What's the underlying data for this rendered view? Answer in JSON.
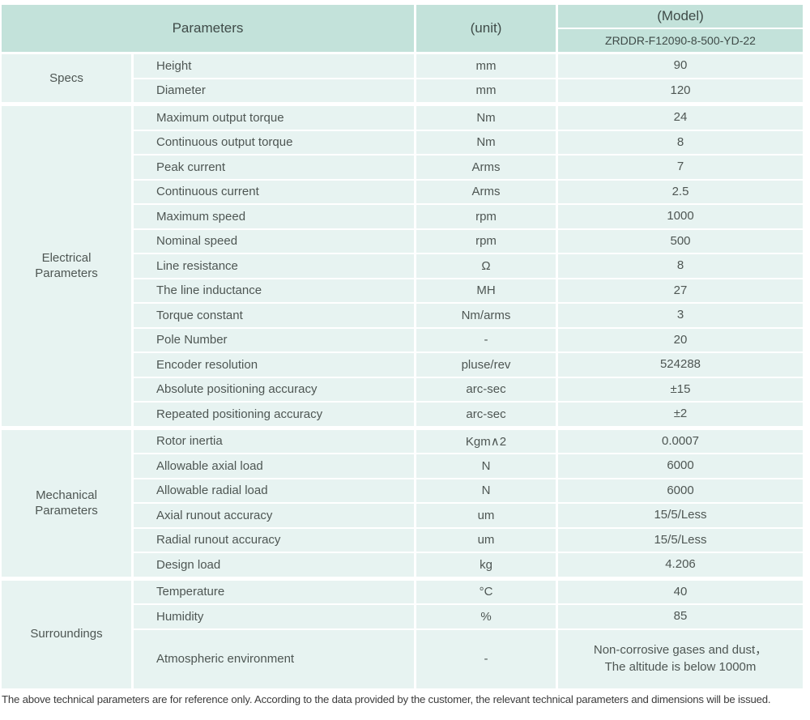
{
  "colors": {
    "header_bg": "#c3e2da",
    "cell_bg": "#e7f3f1",
    "text": "#4e5653"
  },
  "table": {
    "header": {
      "parameters": "Parameters",
      "unit": "(unit)",
      "model": "(Model)",
      "model_value": "ZRDDR-F12090-8-500-YD-22"
    },
    "sections": [
      {
        "group": "Specs",
        "rows": [
          {
            "param": "Height",
            "unit": "mm",
            "value": "90"
          },
          {
            "param": "Diameter",
            "unit": "mm",
            "value": "120"
          }
        ]
      },
      {
        "group": "Electrical Parameters",
        "rows": [
          {
            "param": "Maximum output torque",
            "unit": "Nm",
            "value": "24"
          },
          {
            "param": "Continuous output torque",
            "unit": "Nm",
            "value": "8"
          },
          {
            "param": "Peak current",
            "unit": "Arms",
            "value": "7"
          },
          {
            "param": "Continuous current",
            "unit": "Arms",
            "value": "2.5"
          },
          {
            "param": "Maximum speed",
            "unit": "rpm",
            "value": "1000"
          },
          {
            "param": "Nominal speed",
            "unit": "rpm",
            "value": "500"
          },
          {
            "param": "Line resistance",
            "unit": "Ω",
            "value": "8"
          },
          {
            "param": "The line inductance",
            "unit": "MH",
            "value": "27"
          },
          {
            "param": "Torque constant",
            "unit": "Nm/arms",
            "value": "3"
          },
          {
            "param": "Pole Number",
            "unit": "-",
            "value": "20"
          },
          {
            "param": "Encoder resolution",
            "unit": "pluse/rev",
            "value": "524288"
          },
          {
            "param": "Absolute positioning accuracy",
            "unit": "arc-sec",
            "value": "±15"
          },
          {
            "param": "Repeated positioning accuracy",
            "unit": "arc-sec",
            "value": "±2"
          }
        ]
      },
      {
        "group": "Mechanical Parameters",
        "rows": [
          {
            "param": "Rotor inertia",
            "unit": "Kgm∧2",
            "value": "0.0007"
          },
          {
            "param": "Allowable axial load",
            "unit": "N",
            "value": "6000"
          },
          {
            "param": "Allowable radial load",
            "unit": "N",
            "value": "6000"
          },
          {
            "param": "Axial runout accuracy",
            "unit": "um",
            "value": "15/5/Less"
          },
          {
            "param": "Radial runout accuracy",
            "unit": "um",
            "value": "15/5/Less"
          },
          {
            "param": "Design load",
            "unit": "kg",
            "value": "4.206"
          }
        ]
      },
      {
        "group": "Surroundings",
        "rows": [
          {
            "param": "Temperature",
            "unit": "°C",
            "value": "40"
          },
          {
            "param": "Humidity",
            "unit": "%",
            "value": "85"
          },
          {
            "param": "Atmospheric environment",
            "unit": "-",
            "value": "Non-corrosive gases and dust，\nThe altitude is below 1000m"
          }
        ]
      }
    ]
  },
  "footnote": "The above technical parameters are for reference only. According to the data provided by the customer, the relevant technical parameters and dimensions will be issued."
}
